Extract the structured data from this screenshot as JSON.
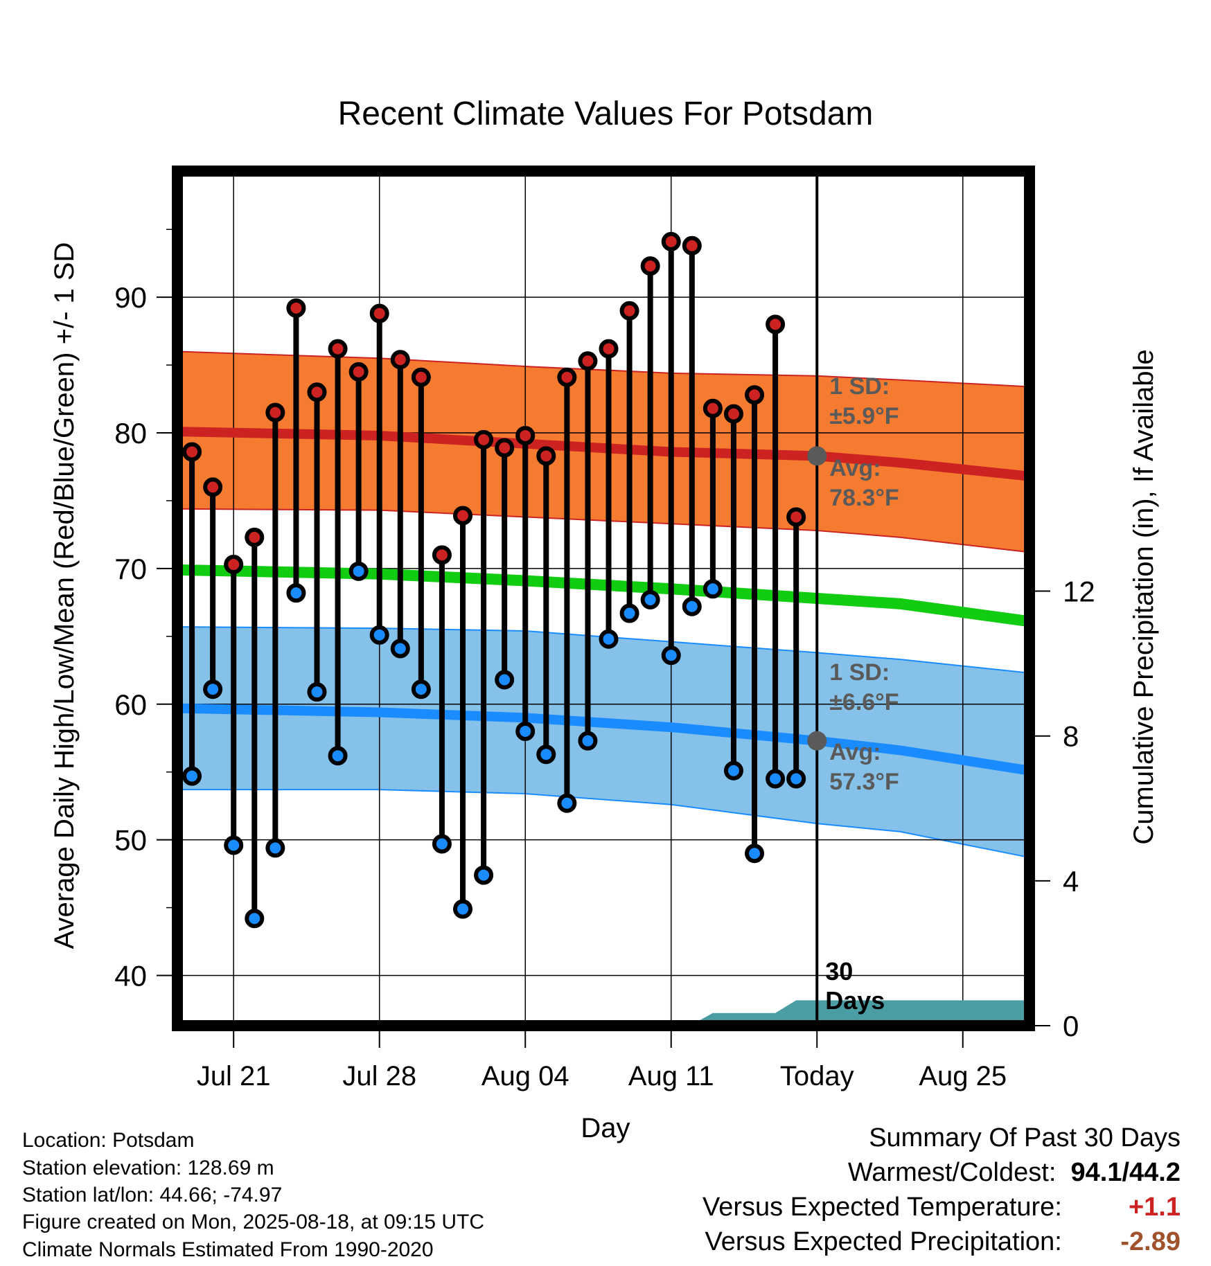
{
  "chart_data": {
    "type": "line",
    "title": "Recent Climate Values For Potsdam",
    "xlabel": "Day",
    "ylabel": "Average Daily High/Low/Mean (Red/Blue/Green) +/- 1 SD",
    "y2label": "Cumulative Precipitation (in), If Available",
    "x_ticks": [
      "Jul 21",
      "Jul 28",
      "Aug 04",
      "Aug 11",
      "Today",
      "Aug 25"
    ],
    "x_tick_days": [
      0,
      7,
      14,
      21,
      28,
      35
    ],
    "xlim": [
      -2.7,
      38.2
    ],
    "ylim": [
      36.3,
      99.3
    ],
    "yticks": [
      40,
      50,
      60,
      70,
      80,
      90
    ],
    "y2lim": [
      0,
      23.6
    ],
    "y2ticks": [
      0,
      4,
      8,
      12
    ],
    "grid": true,
    "today_day": 28,
    "today_label": "30 Days",
    "colors": {
      "high": "#cc2222",
      "high_band": "#f47b30",
      "mean": "#11cc11",
      "low": "#1a8cff",
      "low_band": "#85c1e9",
      "precip": "#4a9da3",
      "dot_today": "#5a5a5a",
      "axes": "#000000"
    },
    "daily_high": [
      78.6,
      76.0,
      70.3,
      72.3,
      81.5,
      89.2,
      83.0,
      86.2,
      84.5,
      88.8,
      85.4,
      84.1,
      71.0,
      73.9,
      79.5,
      78.9,
      79.8,
      78.3,
      84.1,
      85.3,
      86.2,
      89.0,
      92.3,
      94.1,
      93.8,
      81.8,
      81.4,
      82.8,
      88.0,
      73.8
    ],
    "daily_low": [
      54.7,
      61.1,
      49.6,
      44.2,
      49.4,
      68.2,
      60.9,
      56.2,
      69.8,
      65.1,
      64.1,
      61.1,
      49.7,
      44.9,
      47.4,
      61.8,
      58.0,
      56.3,
      52.7,
      57.3,
      64.8,
      66.7,
      67.7,
      63.6,
      67.2,
      68.5,
      55.1,
      49.0,
      54.5,
      54.5
    ],
    "daily_days": [
      -2,
      -1,
      0,
      1,
      2,
      3,
      4,
      5,
      6,
      7,
      8,
      9,
      10,
      11,
      12,
      13,
      14,
      15,
      16,
      17,
      18,
      19,
      20,
      21,
      22,
      23,
      24,
      25,
      26,
      27
    ],
    "normals": {
      "days": [
        -2.7,
        7,
        14,
        21,
        28,
        32,
        38.2
      ],
      "high_avg": [
        80.1,
        79.8,
        79.2,
        78.6,
        78.3,
        77.8,
        76.8
      ],
      "high_upper": [
        86.0,
        85.5,
        84.9,
        84.4,
        84.2,
        83.9,
        83.4
      ],
      "high_lower": [
        74.4,
        74.3,
        73.8,
        73.3,
        72.8,
        72.3,
        71.2
      ],
      "mean_avg": [
        69.9,
        69.6,
        69.1,
        68.5,
        67.8,
        67.4,
        66.1
      ],
      "low_avg": [
        59.7,
        59.4,
        59.0,
        58.3,
        57.3,
        56.6,
        55.1
      ],
      "low_upper": [
        65.7,
        65.6,
        65.4,
        64.6,
        63.8,
        63.3,
        62.3
      ],
      "low_lower": [
        53.7,
        53.7,
        53.4,
        52.6,
        51.2,
        50.6,
        48.7
      ]
    },
    "precip_cumulative": {
      "days": [
        21.9,
        23.0,
        25.0,
        26.0,
        27.0,
        38.2
      ],
      "values": [
        0,
        0.35,
        0.35,
        0.35,
        0.7,
        0.7
      ]
    },
    "annotations": {
      "high_sd": [
        "1 SD:",
        "±5.9°F"
      ],
      "high_avg": [
        "Avg:",
        "78.3°F"
      ],
      "low_sd": [
        "1 SD:",
        "±6.6°F"
      ],
      "low_avg": [
        "Avg:",
        "57.3°F"
      ]
    }
  },
  "footer": {
    "location": "Location: Potsdam",
    "elevation": "Station elevation: 128.69 m",
    "latlon": "Station lat/lon: 44.66; -74.97",
    "created": "Figure created on Mon, 2025-08-18, at 09:15 UTC",
    "normals": "Climate Normals Estimated From 1990-2020"
  },
  "summary": {
    "title": "Summary Of Past 30 Days",
    "warm_cold_label": "Warmest/Coldest:",
    "warm_cold_value": "94.1/44.2",
    "temp_label": "Versus Expected Temperature:",
    "temp_value": "+1.1",
    "temp_color": "#cc2222",
    "precip_label": "Versus Expected Precipitation:",
    "precip_value": "-2.89",
    "precip_color": "#a0522d"
  }
}
